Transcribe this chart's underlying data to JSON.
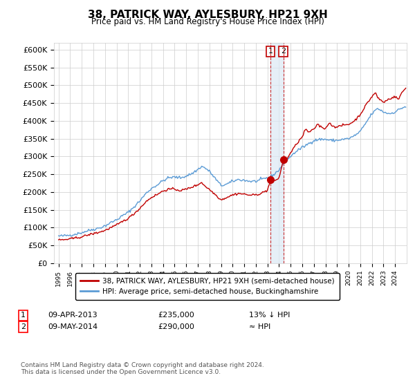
{
  "title": "38, PATRICK WAY, AYLESBURY, HP21 9XH",
  "subtitle": "Price paid vs. HM Land Registry's House Price Index (HPI)",
  "ylim": [
    0,
    620000
  ],
  "yticks": [
    0,
    50000,
    100000,
    150000,
    200000,
    250000,
    300000,
    350000,
    400000,
    450000,
    500000,
    550000,
    600000
  ],
  "ytick_labels": [
    "£0",
    "£50K",
    "£100K",
    "£150K",
    "£200K",
    "£250K",
    "£300K",
    "£350K",
    "£400K",
    "£450K",
    "£500K",
    "£550K",
    "£600K"
  ],
  "hpi_color": "#5b9bd5",
  "price_color": "#c00000",
  "vline_color": "#c00000",
  "shade_color": "#dce9f5",
  "legend_label_red": "38, PATRICK WAY, AYLESBURY, HP21 9XH (semi-detached house)",
  "legend_label_blue": "HPI: Average price, semi-detached house, Buckinghamshire",
  "transaction1_date": "09-APR-2013",
  "transaction1_price": "£235,000",
  "transaction1_hpi": "13% ↓ HPI",
  "transaction2_date": "09-MAY-2014",
  "transaction2_price": "£290,000",
  "transaction2_hpi": "≈ HPI",
  "footer": "Contains HM Land Registry data © Crown copyright and database right 2024.\nThis data is licensed under the Open Government Licence v3.0.",
  "transaction1_x": 2013.27,
  "transaction2_x": 2014.37,
  "transaction1_y": 235000,
  "transaction2_y": 290000,
  "xlim_left": 1994.6,
  "xlim_right": 2025.0
}
